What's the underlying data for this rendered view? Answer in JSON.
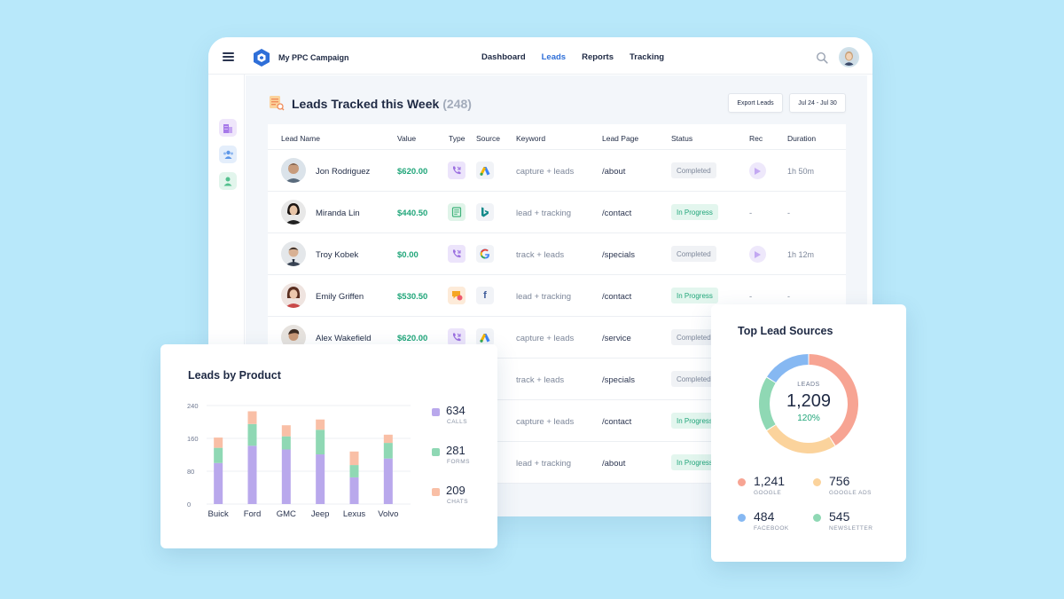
{
  "app": {
    "title": "My PPC Campaign",
    "nav": [
      {
        "label": "Dashboard",
        "active": false
      },
      {
        "label": "Leads",
        "active": true
      },
      {
        "label": "Reports",
        "active": false
      },
      {
        "label": "Tracking",
        "active": false
      }
    ]
  },
  "sidebar": {
    "items": [
      {
        "icon": "building-icon",
        "color": "#a779e9"
      },
      {
        "icon": "users-icon",
        "color": "#5d97e8"
      },
      {
        "icon": "user-icon",
        "color": "#54c08e"
      }
    ]
  },
  "page": {
    "title": "Leads Tracked this Week",
    "count": "(248)",
    "export_label": "Export Leads",
    "date_range": "Jul 24 - Jul 30"
  },
  "table": {
    "headers": [
      "Lead Name",
      "Value",
      "Type",
      "Source",
      "Keyword",
      "Lead Page",
      "Status",
      "Rec",
      "Duration"
    ],
    "rows": [
      {
        "name": "Jon Rodriguez",
        "value": "$620.00",
        "type": "call",
        "source": "google-ads",
        "keyword": "capture + leads",
        "page": "/about",
        "status": "Completed",
        "rec": true,
        "duration": "1h 50m"
      },
      {
        "name": "Miranda Lin",
        "value": "$440.50",
        "type": "form",
        "source": "bing",
        "keyword": "lead + tracking",
        "page": "/contact",
        "status": "In Progress",
        "rec": false,
        "rec_text": "-",
        "duration": "-"
      },
      {
        "name": "Troy Kobek",
        "value": "$0.00",
        "type": "call",
        "source": "google",
        "keyword": "track + leads",
        "page": "/specials",
        "status": "Completed",
        "rec": true,
        "duration": "1h 12m"
      },
      {
        "name": "Emily Griffen",
        "value": "$530.50",
        "type": "chat",
        "source": "facebook",
        "keyword": "lead + tracking",
        "page": "/contact",
        "status": "In Progress",
        "rec": false,
        "rec_text": "-",
        "duration": "-"
      },
      {
        "name": "Alex Wakefield",
        "value": "$620.00",
        "type": "call",
        "source": "google-ads",
        "keyword": "capture + leads",
        "page": "/service",
        "status": "Completed",
        "rec": false,
        "rec_text": "",
        "duration": ""
      },
      {
        "name": "",
        "value": "",
        "type": "",
        "source": "",
        "keyword": "track + leads",
        "page": "/specials",
        "status": "Completed",
        "rec": false,
        "rec_text": "",
        "duration": ""
      },
      {
        "name": "",
        "value": "",
        "type": "",
        "source": "",
        "keyword": "capture + leads",
        "page": "/contact",
        "status": "In Progress",
        "rec": false,
        "rec_text": "",
        "duration": ""
      },
      {
        "name": "",
        "value": "",
        "type": "",
        "source": "",
        "keyword": "lead + tracking",
        "page": "/about",
        "status": "In Progress",
        "rec": false,
        "rec_text": "",
        "duration": ""
      }
    ]
  },
  "leads_by_product": {
    "title": "Leads by Product",
    "legend": [
      {
        "value": "634",
        "label": "CALLS",
        "color": "#b9a8ec"
      },
      {
        "value": "281",
        "label": "FORMS",
        "color": "#8fd8b4"
      },
      {
        "value": "209",
        "label": "CHATS",
        "color": "#f9bfa6"
      }
    ]
  },
  "top_sources": {
    "title": "Top Lead Sources",
    "center_label": "LEADS",
    "center_value": "1,209",
    "center_change": "120%",
    "items": [
      {
        "value": "1,241",
        "label": "GOOGLE",
        "color": "#f7a493"
      },
      {
        "value": "756",
        "label": "GOOGLE ADS",
        "color": "#fbd39c"
      },
      {
        "value": "484",
        "label": "FACEBOOK",
        "color": "#86b8f2"
      },
      {
        "value": "545",
        "label": "NEWSLETTER",
        "color": "#8fd8b4"
      }
    ]
  },
  "chart_data": [
    {
      "type": "bar",
      "title": "Leads by Product",
      "stacked": true,
      "categories": [
        "Buick",
        "Ford",
        "GMC",
        "Jeep",
        "Lexus",
        "Volvo"
      ],
      "series": [
        {
          "name": "CALLS",
          "values": [
            100,
            142,
            133,
            121,
            65,
            111
          ]
        },
        {
          "name": "FORMS",
          "values": [
            37,
            53,
            32,
            60,
            30,
            38
          ]
        },
        {
          "name": "CHATS",
          "values": [
            25,
            31,
            27,
            25,
            33,
            20
          ]
        }
      ],
      "yticks": [
        0,
        80,
        160,
        240
      ],
      "ylim": [
        0,
        240
      ],
      "xlabel": "",
      "ylabel": "",
      "grid": true,
      "legend": "right"
    },
    {
      "type": "pie",
      "title": "Top Lead Sources",
      "donut": true,
      "categories": [
        "GOOGLE",
        "GOOGLE ADS",
        "NEWSLETTER",
        "FACEBOOK"
      ],
      "values": [
        1241,
        756,
        545,
        484
      ],
      "legend": "bottom"
    }
  ]
}
